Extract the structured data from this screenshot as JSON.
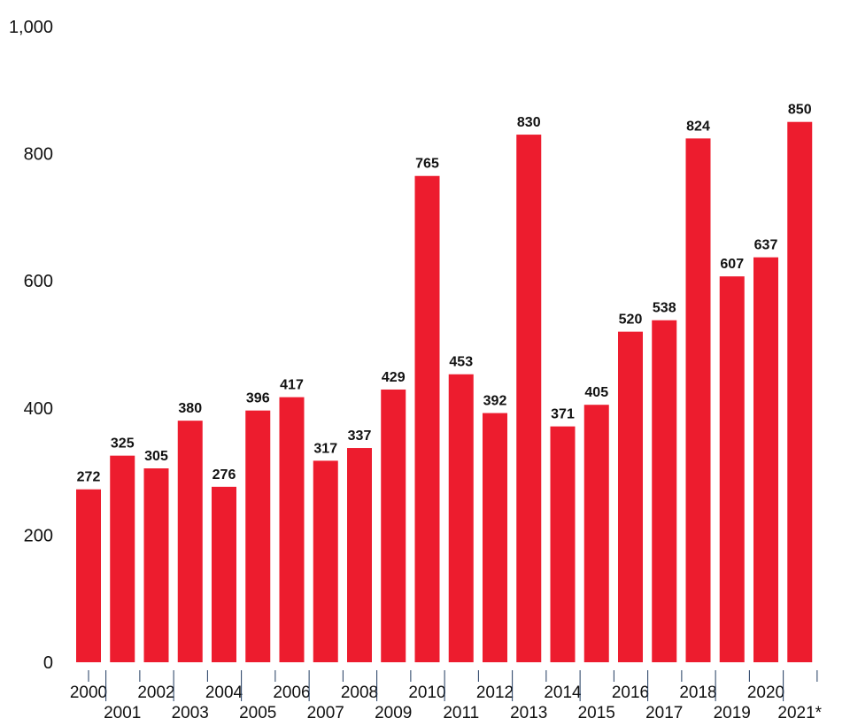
{
  "chart_data": {
    "type": "bar",
    "title": "",
    "xlabel": "",
    "ylabel": "",
    "ylim": [
      0,
      1000
    ],
    "yticks": [
      0,
      200,
      400,
      600,
      800,
      1000
    ],
    "ytick_labels": [
      "0",
      "200",
      "400",
      "600",
      "800",
      "1,000"
    ],
    "grid": false,
    "categories": [
      "2000",
      "2001",
      "2002",
      "2003",
      "2004",
      "2005",
      "2006",
      "2007",
      "2008",
      "2009",
      "2010",
      "2011",
      "2012",
      "2013",
      "2014",
      "2015",
      "2016",
      "2017",
      "2018",
      "2019",
      "2020",
      "2021*"
    ],
    "values": [
      272,
      325,
      305,
      380,
      276,
      396,
      417,
      317,
      337,
      429,
      765,
      453,
      392,
      830,
      371,
      405,
      520,
      538,
      824,
      607,
      637,
      850
    ],
    "bar_color": "#ed1c2e",
    "tick_color": "#1f3a5f"
  }
}
